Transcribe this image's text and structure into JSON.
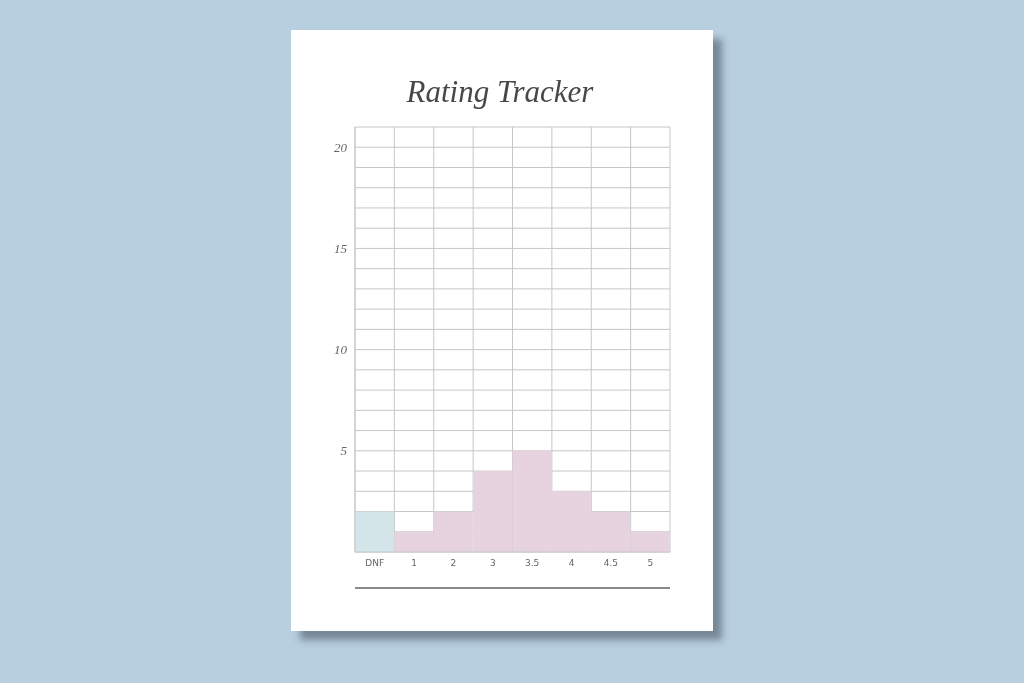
{
  "chart_data": {
    "type": "bar",
    "title": "Rating Tracker",
    "categories": [
      "DNF",
      "1",
      "2",
      "3",
      "3.5",
      "4",
      "4.5",
      "5"
    ],
    "values": [
      2,
      1,
      2,
      4,
      5,
      3,
      2,
      1
    ],
    "colors": [
      "#d3e5e8",
      "#e6d3df",
      "#e6d3df",
      "#e6d3df",
      "#e6d3df",
      "#e6d3df",
      "#e6d3df",
      "#e6d3df"
    ],
    "ylim": [
      0,
      21
    ],
    "yticks": [
      {
        "value": 0,
        "label": null
      },
      {
        "value": 1,
        "label": null
      },
      {
        "value": 2,
        "label": null
      },
      {
        "value": 3,
        "label": null
      },
      {
        "value": 4,
        "label": null
      },
      5,
      {
        "value": 6,
        "label": null
      },
      {
        "value": 7,
        "label": null
      },
      {
        "value": 8,
        "label": null
      },
      {
        "value": 9,
        "label": null
      },
      10,
      {
        "value": 11,
        "label": null
      },
      {
        "value": 12,
        "label": null
      },
      {
        "value": 13,
        "label": null
      },
      {
        "value": 14,
        "label": null
      },
      15,
      {
        "value": 16,
        "label": null
      },
      {
        "value": 17,
        "label": null
      },
      {
        "value": 18,
        "label": null
      },
      {
        "value": 19,
        "label": null
      },
      20,
      {
        "value": 21,
        "label": null
      }
    ],
    "grid": true
  }
}
